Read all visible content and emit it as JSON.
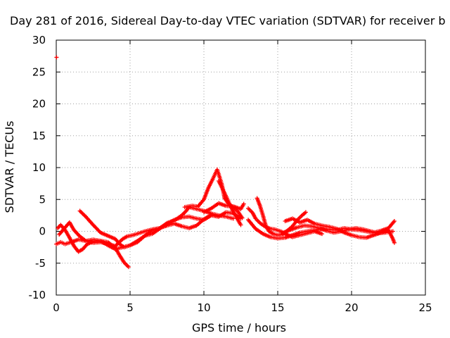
{
  "chart_data": {
    "type": "scatter",
    "title": "Day 281 of 2016, Sidereal Day-to-day VTEC variation (SDTVAR) for receiver b",
    "xlabel": "GPS time / hours",
    "ylabel": "SDTVAR / TECUs",
    "xlim": [
      0,
      25
    ],
    "ylim": [
      -10,
      30
    ],
    "xticks": [
      "0",
      "5",
      "10",
      "15",
      "20",
      "25"
    ],
    "yticks": [
      "-10",
      "-5",
      "0",
      "5",
      "10",
      "15",
      "20",
      "25",
      "30"
    ],
    "grid": true,
    "marker": "plus",
    "color": "#ff0000",
    "series": [
      {
        "points": [
          [
            0.02,
            27.3
          ]
        ]
      },
      {
        "points": [
          [
            0.1,
            0.5
          ],
          [
            0.3,
            1.0
          ],
          [
            0.6,
            0.2
          ],
          [
            0.9,
            -1.0
          ],
          [
            1.2,
            -2.3
          ],
          [
            1.5,
            -3.2
          ],
          [
            1.8,
            -2.8
          ],
          [
            2.1,
            -2.0
          ],
          [
            2.5,
            -1.6
          ],
          [
            3.0,
            -1.5
          ],
          [
            3.5,
            -1.7
          ],
          [
            4.0,
            -2.6
          ],
          [
            4.3,
            -3.8
          ],
          [
            4.6,
            -4.9
          ],
          [
            4.9,
            -5.6
          ]
        ]
      },
      {
        "points": [
          [
            0.0,
            -2.0
          ],
          [
            0.3,
            -1.7
          ],
          [
            0.6,
            -2.0
          ],
          [
            1.0,
            -1.7
          ],
          [
            1.5,
            -1.3
          ],
          [
            2.0,
            -1.5
          ],
          [
            2.5,
            -1.3
          ],
          [
            3.0,
            -1.5
          ],
          [
            3.5,
            -2.2
          ],
          [
            4.0,
            -2.8
          ],
          [
            4.5,
            -2.5
          ],
          [
            5.0,
            -2.2
          ],
          [
            5.5,
            -1.7
          ],
          [
            6.0,
            -0.7
          ],
          [
            6.5,
            0.2
          ],
          [
            7.0,
            0.5
          ],
          [
            7.5,
            1.2
          ],
          [
            8.0,
            1.8
          ],
          [
            8.5,
            2.2
          ],
          [
            9.0,
            2.3
          ],
          [
            9.5,
            2.0
          ],
          [
            10.0,
            1.8
          ],
          [
            10.5,
            2.5
          ],
          [
            11.0,
            2.3
          ]
        ]
      },
      {
        "points": [
          [
            1.6,
            3.2
          ],
          [
            2.0,
            2.3
          ],
          [
            2.5,
            1.0
          ],
          [
            3.0,
            -0.2
          ],
          [
            3.5,
            -0.7
          ],
          [
            4.0,
            -1.2
          ],
          [
            4.3,
            -2.0
          ],
          [
            4.6,
            -2.5
          ],
          [
            5.0,
            -2.2
          ],
          [
            5.5,
            -1.5
          ],
          [
            6.0,
            -0.7
          ],
          [
            6.5,
            -0.4
          ],
          [
            7.0,
            0.4
          ],
          [
            7.5,
            1.3
          ],
          [
            8.0,
            1.7
          ],
          [
            8.5,
            2.5
          ],
          [
            8.8,
            3.2
          ],
          [
            9.0,
            3.8
          ],
          [
            9.5,
            3.5
          ],
          [
            10.0,
            3.2
          ],
          [
            10.5,
            2.8
          ],
          [
            11.0,
            2.5
          ],
          [
            11.5,
            2.3
          ],
          [
            12.0,
            2.0
          ]
        ]
      },
      {
        "points": [
          [
            0.2,
            -0.5
          ],
          [
            0.6,
            0.6
          ],
          [
            0.9,
            1.4
          ],
          [
            1.2,
            0.2
          ],
          [
            1.6,
            -0.8
          ],
          [
            2.0,
            -1.5
          ],
          [
            2.5,
            -1.8
          ],
          [
            3.0,
            -1.7
          ],
          [
            3.5,
            -2.0
          ],
          [
            4.0,
            -2.3
          ],
          [
            4.5,
            -1.2
          ],
          [
            4.8,
            -0.8
          ],
          [
            5.2,
            -0.6
          ],
          [
            5.6,
            -0.3
          ],
          [
            6.0,
            0.0
          ],
          [
            6.5,
            0.3
          ],
          [
            7.0,
            0.5
          ],
          [
            7.5,
            0.9
          ],
          [
            8.0,
            1.2
          ],
          [
            8.5,
            0.8
          ],
          [
            9.0,
            0.5
          ],
          [
            9.5,
            0.9
          ],
          [
            10.0,
            1.9
          ],
          [
            10.5,
            2.6
          ],
          [
            11.0,
            2.3
          ],
          [
            11.5,
            3.0
          ],
          [
            12.0,
            2.8
          ],
          [
            12.5,
            2.0
          ]
        ]
      },
      {
        "points": [
          [
            8.7,
            3.8
          ],
          [
            9.2,
            4.0
          ],
          [
            9.6,
            3.9
          ],
          [
            10.0,
            5.0
          ],
          [
            10.3,
            6.8
          ],
          [
            10.6,
            8.2
          ],
          [
            10.9,
            9.7
          ],
          [
            11.2,
            7.5
          ],
          [
            11.4,
            5.2
          ],
          [
            11.7,
            4.2
          ],
          [
            12.0,
            3.8
          ],
          [
            12.3,
            3.1
          ],
          [
            12.6,
            2.1
          ]
        ]
      },
      {
        "points": [
          [
            11.0,
            7.9
          ],
          [
            11.3,
            6.5
          ],
          [
            11.6,
            5.0
          ],
          [
            11.9,
            3.5
          ],
          [
            12.2,
            2.2
          ],
          [
            12.5,
            1.0
          ]
        ]
      },
      {
        "points": [
          [
            10.0,
            3.0
          ],
          [
            10.5,
            3.6
          ],
          [
            11.0,
            4.4
          ],
          [
            11.5,
            4.0
          ],
          [
            12.0,
            3.9
          ],
          [
            12.5,
            3.5
          ],
          [
            12.7,
            4.3
          ]
        ]
      },
      {
        "points": [
          [
            13.0,
            3.6
          ],
          [
            13.3,
            2.9
          ],
          [
            13.5,
            2.0
          ],
          [
            13.8,
            1.3
          ],
          [
            14.1,
            0.8
          ],
          [
            14.5,
            0.4
          ],
          [
            14.8,
            0.3
          ],
          [
            15.2,
            0.0
          ],
          [
            15.6,
            -0.5
          ],
          [
            16.0,
            -0.9
          ],
          [
            16.5,
            -0.6
          ],
          [
            17.0,
            -0.3
          ],
          [
            17.5,
            0.0
          ],
          [
            18.0,
            -0.4
          ]
        ]
      },
      {
        "points": [
          [
            13.6,
            5.2
          ],
          [
            13.8,
            4.0
          ],
          [
            14.0,
            2.5
          ],
          [
            14.2,
            0.8
          ],
          [
            14.4,
            0.0
          ],
          [
            14.7,
            -0.4
          ],
          [
            15.0,
            -0.6
          ],
          [
            15.3,
            -0.5
          ],
          [
            15.6,
            0.0
          ],
          [
            16.0,
            0.8
          ],
          [
            16.3,
            1.7
          ],
          [
            16.6,
            2.4
          ],
          [
            16.9,
            3.0
          ]
        ]
      },
      {
        "points": [
          [
            13.0,
            1.8
          ],
          [
            13.5,
            0.4
          ],
          [
            14.0,
            -0.4
          ],
          [
            14.5,
            -0.9
          ],
          [
            15.0,
            -1.1
          ],
          [
            15.5,
            -1.0
          ],
          [
            16.0,
            -0.6
          ],
          [
            16.5,
            -0.2
          ],
          [
            17.0,
            0.0
          ],
          [
            17.5,
            0.2
          ],
          [
            18.0,
            0.4
          ],
          [
            18.5,
            0.3
          ],
          [
            19.0,
            0.2
          ],
          [
            19.5,
            0.5
          ],
          [
            20.0,
            0.3
          ],
          [
            20.5,
            0.2
          ],
          [
            21.0,
            0.0
          ],
          [
            21.5,
            -0.2
          ],
          [
            22.0,
            0.1
          ],
          [
            22.5,
            0.5
          ],
          [
            22.9,
            1.6
          ]
        ]
      },
      {
        "points": [
          [
            15.5,
            1.6
          ],
          [
            16.0,
            2.0
          ],
          [
            16.5,
            1.4
          ],
          [
            17.0,
            1.8
          ],
          [
            17.5,
            1.2
          ],
          [
            18.0,
            0.9
          ],
          [
            18.5,
            0.7
          ],
          [
            19.0,
            0.4
          ],
          [
            19.5,
            -0.2
          ],
          [
            20.0,
            -0.6
          ],
          [
            20.5,
            -0.9
          ],
          [
            21.0,
            -1.0
          ],
          [
            21.5,
            -0.6
          ],
          [
            22.0,
            -0.2
          ],
          [
            22.5,
            0.2
          ],
          [
            22.8,
            -1.2
          ],
          [
            22.9,
            -1.8
          ]
        ]
      },
      {
        "points": [
          [
            15.3,
            -0.3
          ],
          [
            15.8,
            0.2
          ],
          [
            16.3,
            0.6
          ],
          [
            16.8,
            0.9
          ],
          [
            17.3,
            0.8
          ],
          [
            17.8,
            0.5
          ],
          [
            18.3,
            0.1
          ],
          [
            18.8,
            -0.2
          ],
          [
            19.3,
            0.0
          ],
          [
            19.8,
            0.3
          ],
          [
            20.3,
            0.5
          ],
          [
            20.8,
            0.3
          ],
          [
            21.3,
            0.0
          ],
          [
            21.8,
            -0.3
          ],
          [
            22.3,
            -0.2
          ],
          [
            22.8,
            0.0
          ]
        ]
      }
    ]
  }
}
